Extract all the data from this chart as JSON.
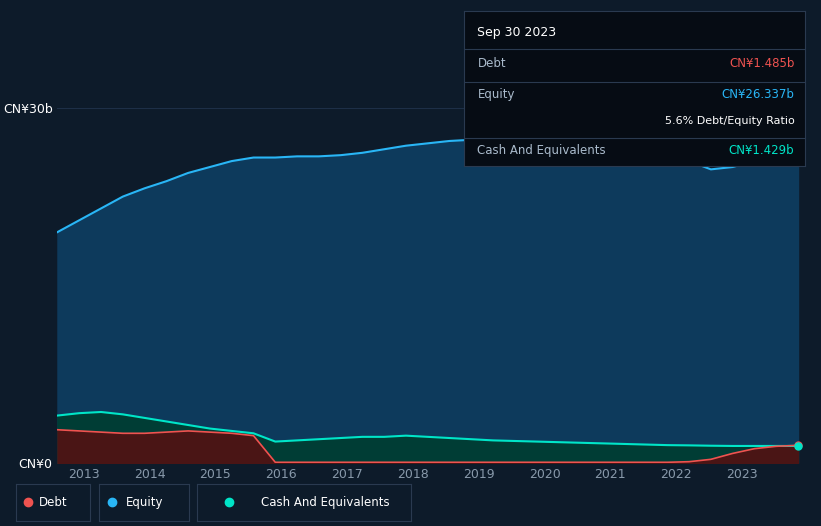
{
  "background_color": "#0d1b2a",
  "plot_bg_color": "#0d1b2a",
  "grid_color": "#1e3048",
  "title_box": {
    "date": "Sep 30 2023",
    "debt_label": "Debt",
    "debt_value": "CN¥1.485b",
    "equity_label": "Equity",
    "equity_value": "CN¥26.337b",
    "ratio": "5.6% Debt/Equity Ratio",
    "cash_label": "Cash And Equivalents",
    "cash_value": "CN¥1.429b"
  },
  "ylabel_top": "CN¥30b",
  "ylabel_bottom": "CN¥0",
  "equity_color": "#29b6f6",
  "equity_fill": "#0d3a5c",
  "debt_color": "#ef5350",
  "debt_fill": "#4a1515",
  "cash_color": "#00e5c8",
  "cash_fill": "#003d35",
  "tooltip_bg": "#060c14",
  "tooltip_border": "#2a3a50",
  "debt_color_tooltip": "#ef5350",
  "equity_color_tooltip": "#29b6f6",
  "cash_color_tooltip": "#00e5c8",
  "x_ticks": [
    2013,
    2014,
    2015,
    2016,
    2017,
    2018,
    2019,
    2020,
    2021,
    2022,
    2023
  ],
  "ylim": [
    0,
    32
  ],
  "figsize": [
    8.21,
    5.26
  ],
  "dpi": 100,
  "equity_data": [
    19.5,
    20.5,
    21.5,
    22.5,
    23.2,
    23.8,
    24.5,
    25.0,
    25.5,
    25.8,
    25.8,
    25.9,
    25.9,
    26.0,
    26.2,
    26.5,
    26.8,
    27.0,
    27.2,
    27.3,
    27.4,
    27.4,
    27.3,
    27.2,
    27.0,
    26.8,
    26.5,
    26.2,
    25.8,
    25.5,
    24.8,
    25.0,
    25.5,
    26.0,
    26.337
  ],
  "debt_data": [
    2.8,
    2.7,
    2.6,
    2.5,
    2.5,
    2.6,
    2.7,
    2.6,
    2.5,
    2.3,
    0.05,
    0.05,
    0.05,
    0.05,
    0.05,
    0.05,
    0.05,
    0.05,
    0.05,
    0.05,
    0.05,
    0.05,
    0.05,
    0.05,
    0.05,
    0.05,
    0.05,
    0.05,
    0.05,
    0.1,
    0.3,
    0.8,
    1.2,
    1.4,
    1.485
  ],
  "cash_data": [
    4.0,
    4.2,
    4.3,
    4.1,
    3.8,
    3.5,
    3.2,
    2.9,
    2.7,
    2.5,
    1.8,
    1.9,
    2.0,
    2.1,
    2.2,
    2.2,
    2.3,
    2.2,
    2.1,
    2.0,
    1.9,
    1.85,
    1.8,
    1.75,
    1.7,
    1.65,
    1.6,
    1.55,
    1.5,
    1.48,
    1.45,
    1.43,
    1.43,
    1.43,
    1.429
  ]
}
